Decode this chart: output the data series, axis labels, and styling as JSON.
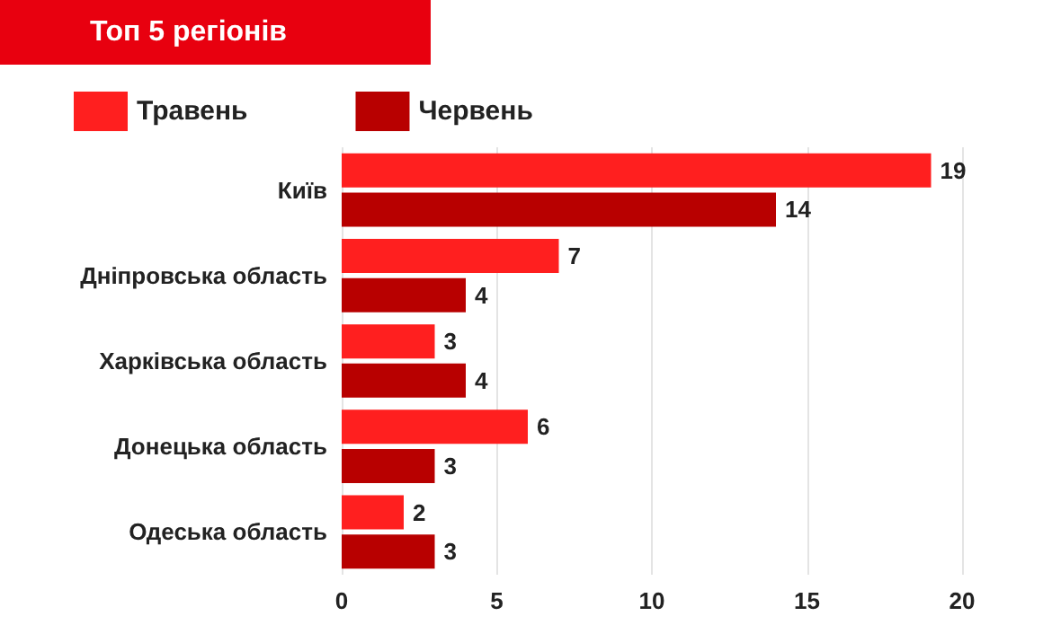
{
  "chart_data": {
    "type": "bar",
    "title": "Топ 5 регіонів",
    "orientation": "horizontal",
    "categories": [
      "Київ",
      "Дніпровська область",
      "Харківська область",
      "Донецька область",
      "Одеська область"
    ],
    "series": [
      {
        "name": "Травень",
        "color": "#ff1f1f",
        "values": [
          19,
          7,
          3,
          6,
          2
        ]
      },
      {
        "name": "Червень",
        "color": "#b80000",
        "values": [
          14,
          4,
          4,
          3,
          3
        ]
      }
    ],
    "xlim": [
      0,
      20
    ],
    "xticks": [
      0,
      5,
      10,
      15,
      20
    ],
    "grid": "x",
    "legend": "top left",
    "data_labels": true
  }
}
